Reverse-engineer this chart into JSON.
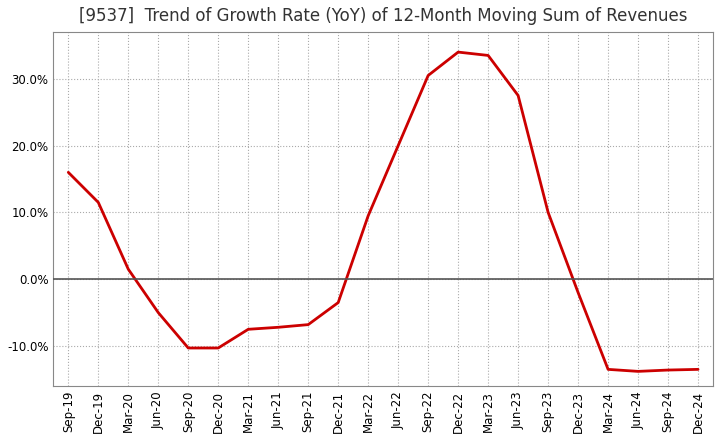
{
  "title": "[9537]  Trend of Growth Rate (YoY) of 12-Month Moving Sum of Revenues",
  "x_labels": [
    "Sep-19",
    "Dec-19",
    "Mar-20",
    "Jun-20",
    "Sep-20",
    "Dec-20",
    "Mar-21",
    "Jun-21",
    "Sep-21",
    "Dec-21",
    "Mar-22",
    "Jun-22",
    "Sep-22",
    "Dec-22",
    "Mar-23",
    "Jun-23",
    "Sep-23",
    "Dec-23",
    "Mar-24",
    "Jun-24",
    "Sep-24",
    "Dec-24"
  ],
  "y_values": [
    16.0,
    11.5,
    1.5,
    -5.0,
    -10.3,
    -10.3,
    -7.5,
    -7.2,
    -6.8,
    -3.5,
    9.5,
    20.0,
    30.5,
    34.0,
    33.5,
    27.5,
    10.0,
    -2.0,
    -13.5,
    -13.8,
    -13.6,
    -13.5
  ],
  "line_color": "#cc0000",
  "line_width": 2.0,
  "background_color": "#ffffff",
  "plot_bg_color": "#ffffff",
  "grid_color": "#aaaaaa",
  "zero_line_color": "#555555",
  "ylim_min": -16,
  "ylim_max": 37,
  "yticks": [
    -10,
    0,
    10,
    20,
    30
  ],
  "title_fontsize": 12,
  "tick_fontsize": 8.5
}
